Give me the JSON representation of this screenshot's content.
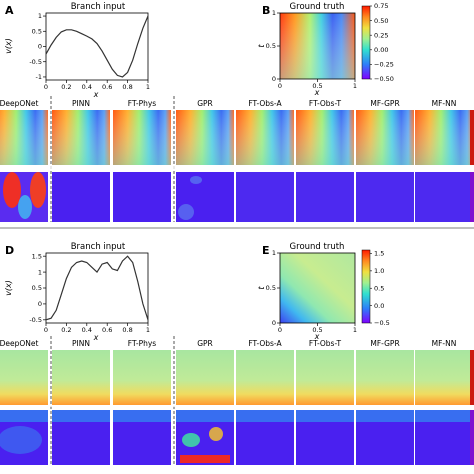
{
  "figure": {
    "panels": {
      "A": "A",
      "B": "B",
      "D": "D",
      "E": "E"
    },
    "methods": [
      "DeepONet",
      "PINN",
      "FT-Phys",
      "GPR",
      "FT-Obs-A",
      "FT-Obs-T",
      "MF-GPR",
      "MF-NN"
    ],
    "colors": {
      "curve": "#333333",
      "separator": "#555555",
      "divider": "#000000"
    }
  },
  "chart_data": [
    {
      "id": "A",
      "type": "line",
      "title": "Branch input",
      "xlabel": "x",
      "ylabel": "v(x)",
      "xlim": [
        0,
        1
      ],
      "ylim": [
        -1.1,
        1.1
      ],
      "xticks": [
        "0",
        "0.2",
        "0.4",
        "0.6",
        "0.8",
        "1"
      ],
      "yticks": [
        "-1",
        "-0.5",
        "0",
        "0.5",
        "1"
      ],
      "x": [
        0,
        0.05,
        0.1,
        0.15,
        0.2,
        0.25,
        0.3,
        0.35,
        0.4,
        0.45,
        0.5,
        0.55,
        0.6,
        0.65,
        0.7,
        0.75,
        0.8,
        0.85,
        0.9,
        0.95,
        1.0
      ],
      "y": [
        -0.25,
        0.05,
        0.3,
        0.48,
        0.55,
        0.55,
        0.5,
        0.42,
        0.34,
        0.25,
        0.1,
        -0.15,
        -0.45,
        -0.75,
        -0.95,
        -1.0,
        -0.85,
        -0.45,
        0.1,
        0.6,
        1.0
      ]
    },
    {
      "id": "B",
      "type": "heatmap",
      "title": "Ground truth",
      "xlabel": "x",
      "ylabel": "t",
      "xticks": [
        "0",
        "0.5",
        "1"
      ],
      "yticks": [
        "0",
        "0.5",
        "1"
      ],
      "colorbar_ticks": [
        "0.75",
        "0.50",
        "0.25",
        "0.00",
        "−0.25",
        "−0.50"
      ],
      "colorbar_range": [
        -0.5,
        0.75
      ]
    },
    {
      "id": "D",
      "type": "line",
      "title": "Branch input",
      "xlabel": "x",
      "ylabel": "v(x)",
      "xlim": [
        0,
        1
      ],
      "ylim": [
        -0.6,
        1.6
      ],
      "xticks": [
        "0",
        "0.2",
        "0.4",
        "0.6",
        "0.8",
        "1"
      ],
      "yticks": [
        "-0.5",
        "0",
        "0.5",
        "1",
        "1.5"
      ],
      "x": [
        0,
        0.05,
        0.1,
        0.15,
        0.2,
        0.25,
        0.3,
        0.35,
        0.4,
        0.45,
        0.5,
        0.55,
        0.6,
        0.65,
        0.7,
        0.75,
        0.8,
        0.85,
        0.9,
        0.95,
        1.0
      ],
      "y": [
        -0.5,
        -0.45,
        -0.2,
        0.3,
        0.8,
        1.15,
        1.3,
        1.35,
        1.3,
        1.15,
        1.0,
        1.25,
        1.3,
        1.1,
        1.05,
        1.35,
        1.5,
        1.3,
        0.7,
        0.0,
        -0.5
      ]
    },
    {
      "id": "E",
      "type": "heatmap",
      "title": "Ground truth",
      "xlabel": "x",
      "ylabel": "t",
      "xticks": [
        "0",
        "0.5",
        "1"
      ],
      "yticks": [
        "0",
        "0.5",
        "1"
      ],
      "colorbar_ticks": [
        "1.5",
        "1.0",
        "0.5",
        "0.0",
        "−0.5"
      ],
      "colorbar_range": [
        -0.5,
        1.6
      ]
    }
  ]
}
